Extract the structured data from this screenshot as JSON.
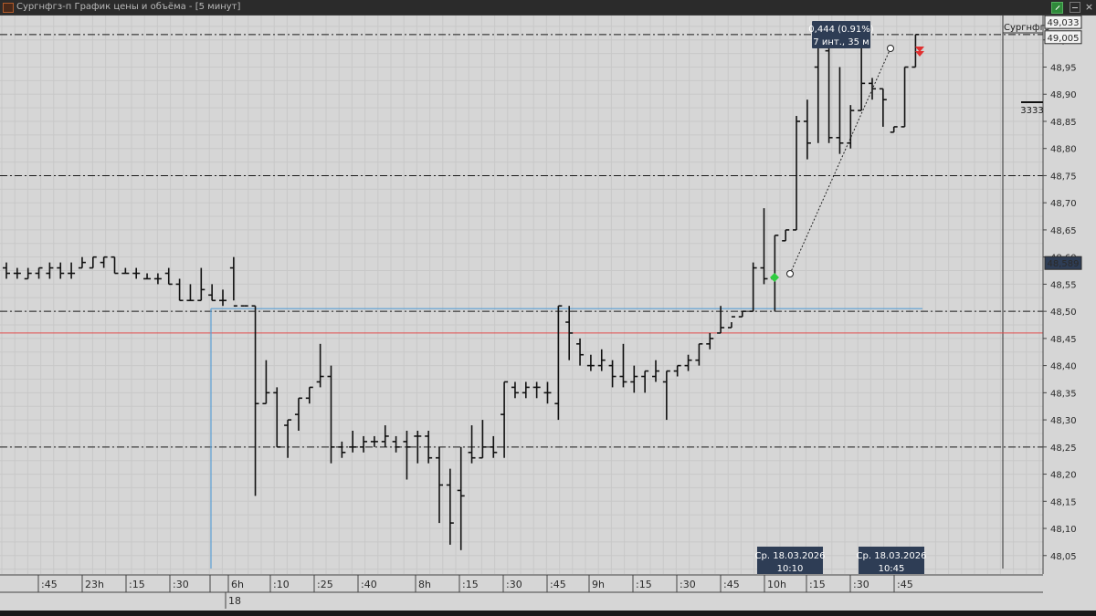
{
  "window": {
    "title": "Сургнфгз-п График цены и объёма - [5 минут]",
    "close_label": "×"
  },
  "colors": {
    "background": "#d6d6d6",
    "bar": "#111111",
    "grid": "#c8c8c8",
    "level_line": "#1a1a1a",
    "support_line": "#5a9fd4",
    "red_line": "#e24b4b",
    "tag_bg": "#2e3d55",
    "buy_marker": "#2ecc40",
    "sell_marker": "#e03030"
  },
  "chart_data": {
    "type": "ohlc",
    "instrument_label": "Сургнфгз",
    "y_ticks": [
      48.05,
      48.1,
      48.15,
      48.2,
      48.25,
      48.3,
      48.35,
      48.4,
      48.45,
      48.5,
      48.55,
      48.6,
      48.65,
      48.7,
      48.75,
      48.8,
      48.85,
      48.9,
      48.95,
      49.0
    ],
    "y_tick_labels": [
      "48,05",
      "48,10",
      "48,15",
      "48,20",
      "48,25",
      "48,30",
      "48,35",
      "48,40",
      "48,45",
      "48,50",
      "48,55",
      "48,60",
      "48,65",
      "48,70",
      "48,75",
      "48,80",
      "48,85",
      "48,90",
      "48,95",
      "49,00"
    ],
    "ylim": [
      48.016,
      49.045
    ],
    "x_tick_labels": [
      ":45",
      "23h",
      ":15",
      ":30",
      ":45",
      "6h",
      ":10",
      ":25",
      ":40",
      "8h",
      ":15",
      ":30",
      ":45",
      "9h",
      ":15",
      ":30",
      ":45",
      "10h",
      ":15",
      ":30",
      ":45"
    ],
    "date_label": "18",
    "bars": [
      [
        48.58,
        48.59,
        48.56,
        48.57
      ],
      [
        48.57,
        48.58,
        48.56,
        48.57
      ],
      [
        48.56,
        48.58,
        48.56,
        48.57
      ],
      [
        48.57,
        48.58,
        48.56,
        48.58
      ],
      [
        48.57,
        48.59,
        48.56,
        48.58
      ],
      [
        48.58,
        48.59,
        48.56,
        48.57
      ],
      [
        48.57,
        48.59,
        48.56,
        48.57
      ],
      [
        48.58,
        48.6,
        48.58,
        48.59
      ],
      [
        48.58,
        48.6,
        48.58,
        48.6
      ],
      [
        48.59,
        48.6,
        48.58,
        48.6
      ],
      [
        48.6,
        48.6,
        48.57,
        48.57
      ],
      [
        48.57,
        48.58,
        48.57,
        48.57
      ],
      [
        48.57,
        48.58,
        48.56,
        48.57
      ],
      [
        48.56,
        48.57,
        48.56,
        48.56
      ],
      [
        48.56,
        48.57,
        48.55,
        48.56
      ],
      [
        48.57,
        48.58,
        48.55,
        48.55
      ],
      [
        48.55,
        48.56,
        48.52,
        48.52
      ],
      [
        48.52,
        48.55,
        48.52,
        48.52
      ],
      [
        48.52,
        48.58,
        48.52,
        48.54
      ],
      [
        48.53,
        48.55,
        48.52,
        48.52
      ],
      [
        48.52,
        48.54,
        48.51,
        48.52
      ],
      [
        48.58,
        48.6,
        48.52,
        48.51
      ],
      [
        48.51,
        48.51,
        48.51,
        48.51
      ],
      [
        48.51,
        48.51,
        48.16,
        48.33
      ],
      [
        48.33,
        48.41,
        48.33,
        48.35
      ],
      [
        48.35,
        48.36,
        48.25,
        48.25
      ],
      [
        48.29,
        48.3,
        48.23,
        48.3
      ],
      [
        48.31,
        48.34,
        48.28,
        48.34
      ],
      [
        48.34,
        48.36,
        48.33,
        48.36
      ],
      [
        48.37,
        48.44,
        48.36,
        48.38
      ],
      [
        48.38,
        48.4,
        48.22,
        48.25
      ],
      [
        48.25,
        48.26,
        48.23,
        48.24
      ],
      [
        48.25,
        48.28,
        48.24,
        48.25
      ],
      [
        48.25,
        48.27,
        48.24,
        48.26
      ],
      [
        48.26,
        48.27,
        48.25,
        48.26
      ],
      [
        48.26,
        48.29,
        48.25,
        48.27
      ],
      [
        48.26,
        48.27,
        48.24,
        48.25
      ],
      [
        48.26,
        48.28,
        48.19,
        48.25
      ],
      [
        48.27,
        48.28,
        48.22,
        48.27
      ],
      [
        48.27,
        48.28,
        48.22,
        48.23
      ],
      [
        48.23,
        48.25,
        48.11,
        48.18
      ],
      [
        48.18,
        48.21,
        48.07,
        48.11
      ],
      [
        48.17,
        48.25,
        48.06,
        48.16
      ],
      [
        48.24,
        48.29,
        48.22,
        48.23
      ],
      [
        48.23,
        48.3,
        48.23,
        48.25
      ],
      [
        48.25,
        48.27,
        48.23,
        48.24
      ],
      [
        48.31,
        48.37,
        48.23,
        48.37
      ],
      [
        48.36,
        48.37,
        48.34,
        48.35
      ],
      [
        48.35,
        48.37,
        48.34,
        48.36
      ],
      [
        48.36,
        48.37,
        48.34,
        48.36
      ],
      [
        48.35,
        48.37,
        48.33,
        48.35
      ],
      [
        48.33,
        48.51,
        48.3,
        48.51
      ],
      [
        48.48,
        48.51,
        48.41,
        48.46
      ],
      [
        48.44,
        48.45,
        48.4,
        48.42
      ],
      [
        48.4,
        48.42,
        48.39,
        48.4
      ],
      [
        48.4,
        48.43,
        48.39,
        48.41
      ],
      [
        48.4,
        48.41,
        48.36,
        48.38
      ],
      [
        48.38,
        48.44,
        48.36,
        48.37
      ],
      [
        48.37,
        48.4,
        48.35,
        48.38
      ],
      [
        48.38,
        48.39,
        48.35,
        48.39
      ],
      [
        48.38,
        48.41,
        48.37,
        48.39
      ],
      [
        48.37,
        48.39,
        48.3,
        48.39
      ],
      [
        48.39,
        48.4,
        48.38,
        48.4
      ],
      [
        48.4,
        48.42,
        48.39,
        48.41
      ],
      [
        48.41,
        48.44,
        48.4,
        48.44
      ],
      [
        48.44,
        48.46,
        48.43,
        48.45
      ],
      [
        48.46,
        48.51,
        48.46,
        48.47
      ],
      [
        48.47,
        48.48,
        48.47,
        48.49
      ],
      [
        48.49,
        48.5,
        48.49,
        48.5
      ],
      [
        48.5,
        48.59,
        48.5,
        48.58
      ],
      [
        48.58,
        48.69,
        48.55,
        48.56
      ],
      [
        48.56,
        48.64,
        48.5,
        48.64
      ],
      [
        48.63,
        48.65,
        48.63,
        48.65
      ],
      [
        48.65,
        48.86,
        48.65,
        48.85
      ],
      [
        48.85,
        48.89,
        48.78,
        48.81
      ],
      [
        48.95,
        48.99,
        48.81,
        48.99
      ],
      [
        48.98,
        48.99,
        48.81,
        48.82
      ],
      [
        48.82,
        48.95,
        48.79,
        48.81
      ],
      [
        48.81,
        48.88,
        48.8,
        48.87
      ],
      [
        48.87,
        49.0,
        48.87,
        48.92
      ],
      [
        48.92,
        48.93,
        48.89,
        48.91
      ],
      [
        48.91,
        48.91,
        48.84,
        48.89
      ],
      [
        48.83,
        48.84,
        48.83,
        48.84
      ],
      [
        48.84,
        48.95,
        48.84,
        48.95
      ],
      [
        48.95,
        49.01,
        48.95,
        49.01
      ]
    ],
    "horizontal_levels": [
      49.01,
      48.75,
      48.5,
      48.25
    ],
    "red_level": 48.46,
    "support_level": 48.505,
    "last_price_tags": [
      "49,033",
      "49,005",
      "48,589"
    ],
    "trend_measure": {
      "label_line1": "0,444 (0.91%)",
      "label_line2": "7 инт., 35 м"
    },
    "time_tags": [
      {
        "line1": "Ср. 18.03.2026",
        "line2": "10:10"
      },
      {
        "line1": "Ср. 18.03.2026",
        "line2": "10:45"
      }
    ],
    "volume_label": "3333"
  }
}
